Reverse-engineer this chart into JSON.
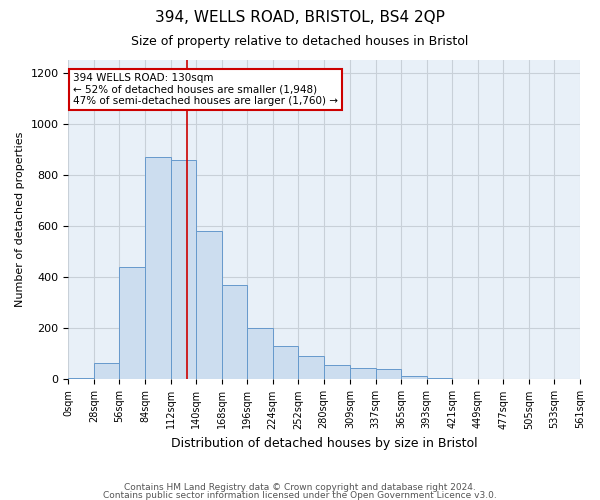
{
  "title1": "394, WELLS ROAD, BRISTOL, BS4 2QP",
  "title2": "Size of property relative to detached houses in Bristol",
  "xlabel": "Distribution of detached houses by size in Bristol",
  "ylabel": "Number of detached properties",
  "bar_values": [
    5,
    65,
    440,
    870,
    860,
    580,
    370,
    200,
    130,
    90,
    55,
    45,
    40,
    15,
    5,
    3,
    3,
    2,
    2,
    2
  ],
  "bin_edges": [
    0,
    28,
    56,
    84,
    112,
    140,
    168,
    196,
    224,
    252,
    280,
    309,
    337,
    365,
    393,
    421,
    449,
    477,
    505,
    533,
    561
  ],
  "bar_color": "#ccddef",
  "bar_edge_color": "#6699cc",
  "grid_color": "#c8d0d8",
  "bg_color": "#e8f0f8",
  "red_line_x": 130,
  "annotation_text": "394 WELLS ROAD: 130sqm\n← 52% of detached houses are smaller (1,948)\n47% of semi-detached houses are larger (1,760) →",
  "annotation_box_color": "#ffffff",
  "annotation_border_color": "#cc0000",
  "ylim": [
    0,
    1250
  ],
  "yticks": [
    0,
    200,
    400,
    600,
    800,
    1000,
    1200
  ],
  "footer1": "Contains HM Land Registry data © Crown copyright and database right 2024.",
  "footer2": "Contains public sector information licensed under the Open Government Licence v3.0."
}
